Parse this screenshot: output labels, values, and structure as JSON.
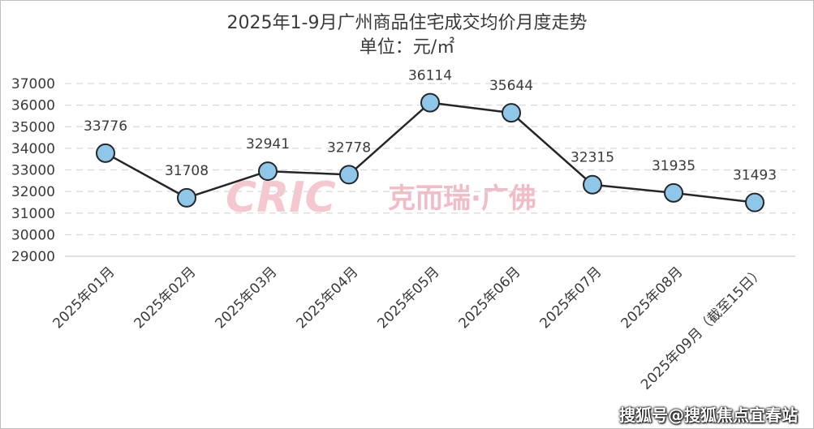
{
  "chart_data": {
    "type": "line",
    "title": "2025年1-9月广州商品住宅成交均价月度走势",
    "subtitle": "单位：元/㎡",
    "categories": [
      "2025年01月",
      "2025年02月",
      "2025年03月",
      "2025年04月",
      "2025年05月",
      "2025年06月",
      "2025年07月",
      "2025年08月",
      "2025年09月（截至15日）"
    ],
    "series": [
      {
        "values": [
          33776,
          31708,
          32941,
          32778,
          36114,
          35644,
          32315,
          31935,
          31493
        ]
      }
    ],
    "ylim": [
      29000,
      37000
    ],
    "yticks": [
      29000,
      30000,
      31000,
      32000,
      33000,
      34000,
      35000,
      36000,
      37000
    ],
    "grid": true,
    "colors": {
      "line": "#262626",
      "marker": "#8fc7ea",
      "grid": "#d9d9d9"
    }
  },
  "watermark": {
    "logo": "CRIC",
    "text": "克而瑞·广佛"
  },
  "footer": "搜狐号@搜狐焦点宜春站"
}
